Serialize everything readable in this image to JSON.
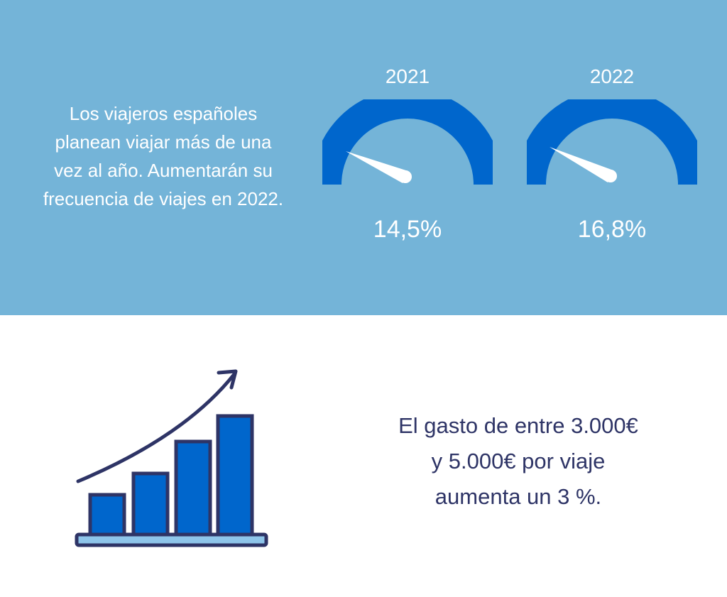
{
  "colors": {
    "top_background": "#74b4d8",
    "gauge_arc": "#0066cc",
    "needle": "#ffffff",
    "text_dark": "#2e3466",
    "bar_fill": "#0066cc",
    "base_fill": "#8ec5ea"
  },
  "intro_text": "Los viajeros españoles\nplanean viajar más de una\nvez al año. Aumentarán su\nfrecuencia de viajes en 2022.",
  "gauges": [
    {
      "year": "2021",
      "value_label": "14,5%",
      "value": 14.5
    },
    {
      "year": "2022",
      "value_label": "16,8%",
      "value": 16.8
    }
  ],
  "spending_text": "El gasto de entre 3.000€\ny 5.000€ por viaje\naumenta un 3 %.",
  "icons": [
    "growth-bar-chart-icon",
    "trend-arrow-icon"
  ]
}
